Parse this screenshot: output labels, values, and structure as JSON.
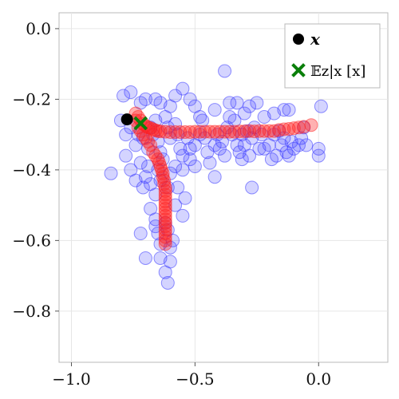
{
  "chart_data": {
    "type": "scatter",
    "title": "",
    "xlabel": "",
    "ylabel": "",
    "xlim": [
      -1.05,
      0.28
    ],
    "ylim": [
      -0.945,
      0.045
    ],
    "x_ticks": [
      -1.0,
      -0.5,
      0.0
    ],
    "x_tick_labels": [
      "−1.0",
      "−0.5",
      "0.0"
    ],
    "y_ticks": [
      0.0,
      -0.2,
      -0.4,
      -0.6,
      -0.8
    ],
    "y_tick_labels": [
      "0.0",
      "−0.2",
      "−0.4",
      "−0.6",
      "−0.8"
    ],
    "grid": true,
    "legend_position": "top-right",
    "legend": [
      {
        "label": "x",
        "marker": "filled-circle",
        "color": "#000000"
      },
      {
        "label": "𝔼z|x [x]",
        "marker": "x-cross",
        "color": "#0a7f0a"
      }
    ],
    "colors": {
      "samples": "#3a3aff",
      "trajectory": "#ff2020",
      "point": "#000000",
      "expectation": "#0a7f0a"
    },
    "series": [
      {
        "marker": "circle",
        "points": [
          [
            -0.79,
            -0.19
          ],
          [
            -0.76,
            -0.18
          ],
          [
            -0.72,
            -0.21
          ],
          [
            -0.7,
            -0.2
          ],
          [
            -0.66,
            -0.2
          ],
          [
            -0.64,
            -0.21
          ],
          [
            -0.6,
            -0.22
          ],
          [
            -0.58,
            -0.19
          ],
          [
            -0.55,
            -0.17
          ],
          [
            -0.52,
            -0.2
          ],
          [
            -0.5,
            -0.22
          ],
          [
            -0.48,
            -0.25
          ],
          [
            -0.42,
            -0.23
          ],
          [
            -0.38,
            -0.12
          ],
          [
            -0.36,
            -0.21
          ],
          [
            -0.33,
            -0.21
          ],
          [
            -0.3,
            -0.24
          ],
          [
            -0.28,
            -0.22
          ],
          [
            -0.25,
            -0.21
          ],
          [
            -0.22,
            -0.25
          ],
          [
            -0.18,
            -0.24
          ],
          [
            -0.14,
            -0.23
          ],
          [
            -0.12,
            -0.23
          ],
          [
            -0.06,
            -0.28
          ],
          [
            0.01,
            -0.22
          ],
          [
            -0.8,
            -0.26
          ],
          [
            -0.78,
            -0.3
          ],
          [
            -0.76,
            -0.28
          ],
          [
            -0.74,
            -0.33
          ],
          [
            -0.73,
            -0.3
          ],
          [
            -0.71,
            -0.31
          ],
          [
            -0.69,
            -0.34
          ],
          [
            -0.68,
            -0.28
          ],
          [
            -0.67,
            -0.3
          ],
          [
            -0.66,
            -0.26
          ],
          [
            -0.65,
            -0.32
          ],
          [
            -0.64,
            -0.35
          ],
          [
            -0.62,
            -0.25
          ],
          [
            -0.61,
            -0.28
          ],
          [
            -0.6,
            -0.31
          ],
          [
            -0.58,
            -0.27
          ],
          [
            -0.57,
            -0.3
          ],
          [
            -0.56,
            -0.34
          ],
          [
            -0.55,
            -0.36
          ],
          [
            -0.53,
            -0.31
          ],
          [
            -0.52,
            -0.34
          ],
          [
            -0.5,
            -0.33
          ],
          [
            -0.48,
            -0.3
          ],
          [
            -0.47,
            -0.26
          ],
          [
            -0.46,
            -0.31
          ],
          [
            -0.45,
            -0.35
          ],
          [
            -0.44,
            -0.38
          ],
          [
            -0.42,
            -0.33
          ],
          [
            -0.41,
            -0.3
          ],
          [
            -0.4,
            -0.34
          ],
          [
            -0.39,
            -0.32
          ],
          [
            -0.38,
            -0.36
          ],
          [
            -0.37,
            -0.28
          ],
          [
            -0.36,
            -0.25
          ],
          [
            -0.35,
            -0.3
          ],
          [
            -0.34,
            -0.26
          ],
          [
            -0.33,
            -0.33
          ],
          [
            -0.32,
            -0.35
          ],
          [
            -0.31,
            -0.3
          ],
          [
            -0.3,
            -0.33
          ],
          [
            -0.29,
            -0.29
          ],
          [
            -0.28,
            -0.36
          ],
          [
            -0.27,
            -0.31
          ],
          [
            -0.26,
            -0.28
          ],
          [
            -0.24,
            -0.34
          ],
          [
            -0.23,
            -0.3
          ],
          [
            -0.22,
            -0.34
          ],
          [
            -0.2,
            -0.33
          ],
          [
            -0.19,
            -0.37
          ],
          [
            -0.18,
            -0.3
          ],
          [
            -0.17,
            -0.36
          ],
          [
            -0.16,
            -0.29
          ],
          [
            -0.15,
            -0.33
          ],
          [
            -0.14,
            -0.31
          ],
          [
            -0.13,
            -0.35
          ],
          [
            -0.12,
            -0.36
          ],
          [
            -0.11,
            -0.32
          ],
          [
            -0.1,
            -0.34
          ],
          [
            -0.08,
            -0.33
          ],
          [
            -0.07,
            -0.31
          ],
          [
            -0.05,
            -0.33
          ],
          [
            0.0,
            -0.36
          ],
          [
            0.0,
            -0.34
          ],
          [
            -0.84,
            -0.41
          ],
          [
            -0.78,
            -0.36
          ],
          [
            -0.76,
            -0.4
          ],
          [
            -0.74,
            -0.43
          ],
          [
            -0.72,
            -0.38
          ],
          [
            -0.71,
            -0.45
          ],
          [
            -0.7,
            -0.42
          ],
          [
            -0.69,
            -0.39
          ],
          [
            -0.68,
            -0.44
          ],
          [
            -0.66,
            -0.47
          ],
          [
            -0.65,
            -0.4
          ],
          [
            -0.64,
            -0.43
          ],
          [
            -0.63,
            -0.37
          ],
          [
            -0.61,
            -0.45
          ],
          [
            -0.6,
            -0.41
          ],
          [
            -0.58,
            -0.39
          ],
          [
            -0.57,
            -0.45
          ],
          [
            -0.55,
            -0.4
          ],
          [
            -0.54,
            -0.48
          ],
          [
            -0.52,
            -0.37
          ],
          [
            -0.5,
            -0.39
          ],
          [
            -0.42,
            -0.42
          ],
          [
            -0.31,
            -0.37
          ],
          [
            -0.27,
            -0.45
          ],
          [
            -0.68,
            -0.51
          ],
          [
            -0.66,
            -0.54
          ],
          [
            -0.65,
            -0.58
          ],
          [
            -0.64,
            -0.61
          ],
          [
            -0.62,
            -0.55
          ],
          [
            -0.61,
            -0.57
          ],
          [
            -0.6,
            -0.62
          ],
          [
            -0.59,
            -0.6
          ],
          [
            -0.58,
            -0.5
          ],
          [
            -0.55,
            -0.53
          ],
          [
            -0.72,
            -0.58
          ],
          [
            -0.7,
            -0.65
          ],
          [
            -0.64,
            -0.65
          ],
          [
            -0.62,
            -0.69
          ],
          [
            -0.61,
            -0.72
          ],
          [
            -0.6,
            -0.66
          ],
          [
            -0.66,
            -0.56
          ]
        ]
      },
      {
        "marker": "circle",
        "points": [
          [
            -0.74,
            -0.24
          ],
          [
            -0.73,
            -0.25
          ],
          [
            -0.72,
            -0.26
          ],
          [
            -0.71,
            -0.27
          ],
          [
            -0.7,
            -0.275
          ],
          [
            -0.69,
            -0.28
          ],
          [
            -0.68,
            -0.282
          ],
          [
            -0.67,
            -0.285
          ],
          [
            -0.66,
            -0.288
          ],
          [
            -0.65,
            -0.29
          ],
          [
            -0.64,
            -0.291
          ],
          [
            -0.62,
            -0.292
          ],
          [
            -0.6,
            -0.293
          ],
          [
            -0.58,
            -0.293
          ],
          [
            -0.56,
            -0.293
          ],
          [
            -0.54,
            -0.293
          ],
          [
            -0.52,
            -0.293
          ],
          [
            -0.5,
            -0.292
          ],
          [
            -0.48,
            -0.292
          ],
          [
            -0.46,
            -0.292
          ],
          [
            -0.44,
            -0.292
          ],
          [
            -0.42,
            -0.292
          ],
          [
            -0.4,
            -0.292
          ],
          [
            -0.38,
            -0.292
          ],
          [
            -0.36,
            -0.292
          ],
          [
            -0.34,
            -0.292
          ],
          [
            -0.32,
            -0.291
          ],
          [
            -0.3,
            -0.291
          ],
          [
            -0.28,
            -0.29
          ],
          [
            -0.26,
            -0.291
          ],
          [
            -0.24,
            -0.29
          ],
          [
            -0.22,
            -0.29
          ],
          [
            -0.2,
            -0.29
          ],
          [
            -0.18,
            -0.29
          ],
          [
            -0.16,
            -0.287
          ],
          [
            -0.14,
            -0.285
          ],
          [
            -0.12,
            -0.284
          ],
          [
            -0.1,
            -0.282
          ],
          [
            -0.08,
            -0.28
          ],
          [
            -0.06,
            -0.278
          ],
          [
            -0.03,
            -0.273
          ],
          [
            -0.74,
            -0.26
          ],
          [
            -0.73,
            -0.28
          ],
          [
            -0.72,
            -0.29
          ],
          [
            -0.71,
            -0.3
          ],
          [
            -0.7,
            -0.31
          ],
          [
            -0.69,
            -0.32
          ],
          [
            -0.68,
            -0.33
          ],
          [
            -0.67,
            -0.35
          ],
          [
            -0.66,
            -0.36
          ],
          [
            -0.65,
            -0.37
          ],
          [
            -0.645,
            -0.38
          ],
          [
            -0.64,
            -0.39
          ],
          [
            -0.635,
            -0.4
          ],
          [
            -0.63,
            -0.41
          ],
          [
            -0.63,
            -0.42
          ],
          [
            -0.625,
            -0.43
          ],
          [
            -0.625,
            -0.44
          ],
          [
            -0.62,
            -0.45
          ],
          [
            -0.62,
            -0.46
          ],
          [
            -0.62,
            -0.47
          ],
          [
            -0.62,
            -0.48
          ],
          [
            -0.62,
            -0.49
          ],
          [
            -0.62,
            -0.5
          ],
          [
            -0.62,
            -0.51
          ],
          [
            -0.62,
            -0.52
          ],
          [
            -0.62,
            -0.53
          ],
          [
            -0.62,
            -0.54
          ],
          [
            -0.62,
            -0.55
          ],
          [
            -0.62,
            -0.56
          ],
          [
            -0.62,
            -0.57
          ],
          [
            -0.62,
            -0.58
          ],
          [
            -0.62,
            -0.59
          ],
          [
            -0.62,
            -0.6
          ],
          [
            -0.62,
            -0.61
          ]
        ]
      },
      {
        "marker": "filled-circle",
        "points": [
          [
            -0.775,
            -0.257
          ]
        ]
      },
      {
        "marker": "x-cross",
        "points": [
          [
            -0.72,
            -0.268
          ]
        ]
      }
    ]
  }
}
